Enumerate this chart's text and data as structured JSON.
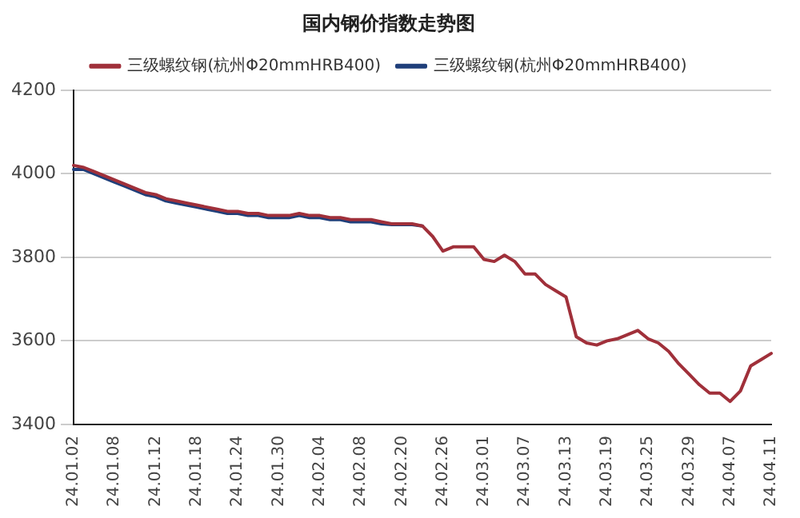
{
  "chart_data": {
    "type": "line",
    "title": "国内钢价指数走势图",
    "categories": [
      "24.01.02",
      null,
      null,
      null,
      "24.01.08",
      null,
      null,
      null,
      "24.01.12",
      null,
      null,
      null,
      "24.01.18",
      null,
      null,
      null,
      "24.01.24",
      null,
      null,
      null,
      "24.01.30",
      null,
      null,
      null,
      "24.02.04",
      null,
      null,
      null,
      "24.02.08",
      null,
      null,
      null,
      "24.02.20",
      null,
      null,
      null,
      "24.02.26",
      null,
      null,
      null,
      "24.03.01",
      null,
      null,
      null,
      "24.03.07",
      null,
      null,
      null,
      "24.03.13",
      null,
      null,
      null,
      "24.03.19",
      null,
      null,
      null,
      "24.03.25",
      null,
      null,
      null,
      "24.03.29",
      null,
      null,
      null,
      "24.04.07",
      null,
      null,
      null,
      "24.04.11"
    ],
    "series": [
      {
        "name": "三级螺纹钢(杭州Φ20mmHRB400)",
        "color": "#a0303a",
        "values": [
          4020,
          4015,
          4005,
          3995,
          3985,
          3975,
          3965,
          3955,
          3950,
          3940,
          3935,
          3930,
          3925,
          3920,
          3915,
          3910,
          3910,
          3905,
          3905,
          3900,
          3900,
          3900,
          3905,
          3900,
          3900,
          3895,
          3895,
          3890,
          3890,
          3890,
          3885,
          3880,
          3880,
          3880,
          3875,
          3850,
          3815,
          3825,
          3825,
          3825,
          3795,
          3790,
          3805,
          3790,
          3760,
          3760,
          3735,
          3720,
          3705,
          3610,
          3595,
          3590,
          3600,
          3605,
          3615,
          3625,
          3605,
          3595,
          3575,
          3545,
          3520,
          3495,
          3475,
          3475,
          3455,
          3480,
          3540,
          3555,
          3570
        ]
      },
      {
        "name": "三级螺纹钢(杭州Φ20mmHRB400)",
        "color": "#1f3f7a",
        "values": [
          4010,
          4010,
          4000,
          3990,
          3980,
          3970,
          3960,
          3950,
          3945,
          3935,
          3930,
          3925,
          3920,
          3915,
          3910,
          3905,
          3905,
          3900,
          3900,
          3895,
          3895,
          3895,
          3900,
          3895,
          3895,
          3890,
          3890,
          3885,
          3885,
          3885,
          3880,
          3878,
          3878,
          3878,
          3875,
          null,
          null,
          null,
          null,
          null,
          null,
          null,
          null,
          null,
          null,
          null,
          null,
          null,
          null,
          null,
          null,
          null,
          null,
          null,
          null,
          null,
          null,
          null,
          null,
          null,
          null,
          null,
          null,
          null,
          null,
          null,
          null,
          null,
          null
        ]
      }
    ],
    "ylim": [
      3400,
      4200
    ],
    "yticks": [
      3400,
      3600,
      3800,
      4000,
      4200
    ],
    "grid": "y",
    "legend": "top",
    "marker": "none",
    "line_style": "solid"
  }
}
